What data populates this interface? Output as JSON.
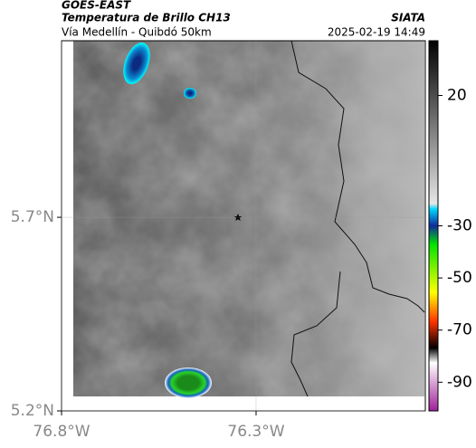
{
  "header": {
    "source": "GOES-EAST",
    "product": "Temperatura de Brillo CH13",
    "route": "Vía Medellín - Quibdó 50km",
    "org": "SIATA",
    "datetime": "2025-02-19 14:49"
  },
  "map": {
    "latlim": [
      5.2,
      6.156
    ],
    "lonlim": [
      -76.8,
      -75.865
    ],
    "latticks": [
      {
        "value": 5.7,
        "label": "5.7°N"
      },
      {
        "value": 5.2,
        "label": "5.2°N"
      }
    ],
    "lonticks": [
      {
        "value": -76.8,
        "label": "76.8°W"
      },
      {
        "value": -76.3,
        "label": "76.3°W"
      }
    ]
  },
  "colorbar": {
    "clim": [
      41,
      -101
    ],
    "ticks": [
      20,
      -30,
      -50,
      -70,
      -90
    ]
  }
}
